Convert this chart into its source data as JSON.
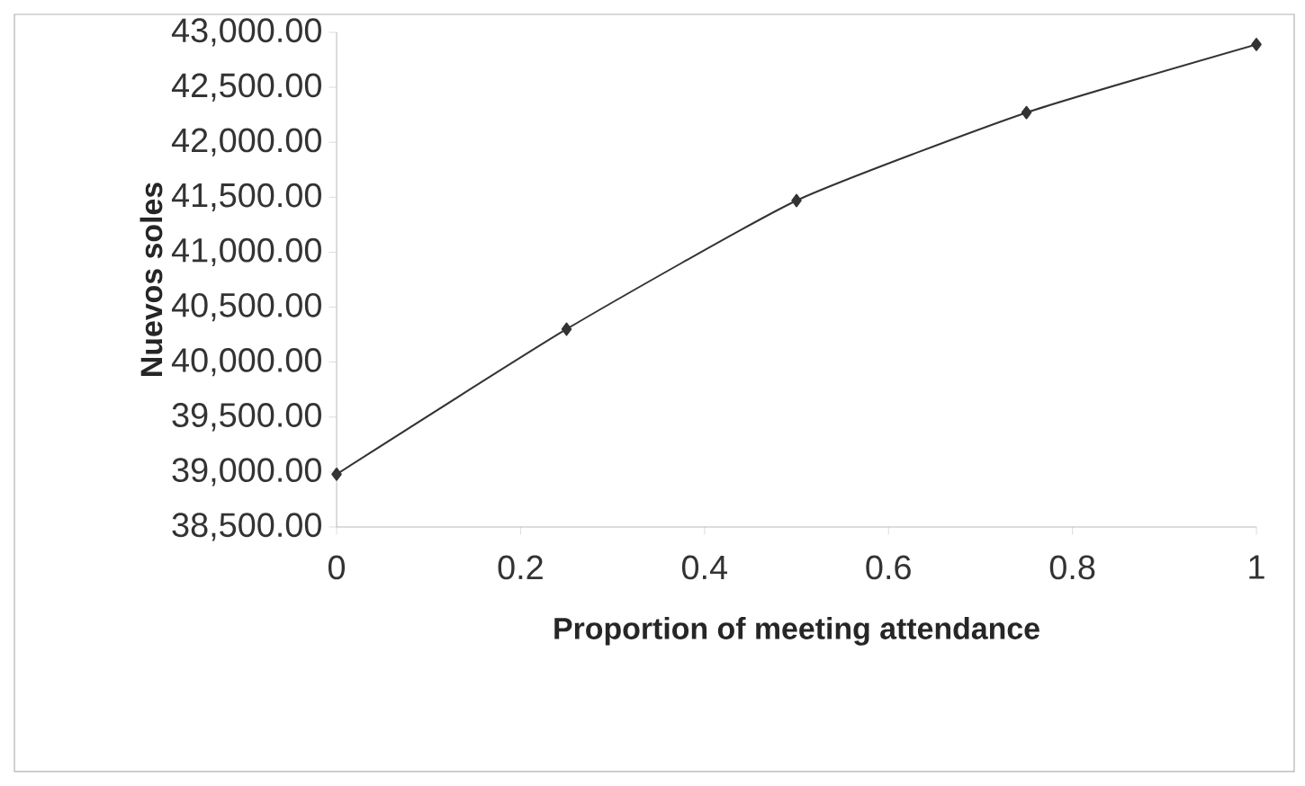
{
  "chart_data": {
    "type": "line",
    "xlabel": "Proportion of meeting attendance",
    "ylabel": "Nuevos soles",
    "x": [
      0,
      0.25,
      0.5,
      0.75,
      1
    ],
    "series": [
      {
        "color": "#333333",
        "values": [
          38980,
          40300,
          41470,
          42270,
          42890
        ]
      }
    ],
    "xlim": [
      0,
      1
    ],
    "xticks": [
      0,
      0.2,
      0.4,
      0.6,
      0.8,
      1
    ],
    "ylim": [
      38500,
      43000
    ],
    "yticks": [
      {
        "value": 38500,
        "label": "38,500.00"
      },
      {
        "value": 39000,
        "label": "39,000.00"
      },
      {
        "value": 39500,
        "label": "39,500.00"
      },
      {
        "value": 40000,
        "label": "40,000.00"
      },
      {
        "value": 40500,
        "label": "40,500.00"
      },
      {
        "value": 41000,
        "label": "41,000.00"
      },
      {
        "value": 41500,
        "label": "41,500.00"
      },
      {
        "value": 42000,
        "label": "42,000.00"
      },
      {
        "value": 42500,
        "label": "42,500.00"
      },
      {
        "value": 43000,
        "label": "43,000.00"
      }
    ],
    "marker": "diamond",
    "line_style": "solid"
  }
}
